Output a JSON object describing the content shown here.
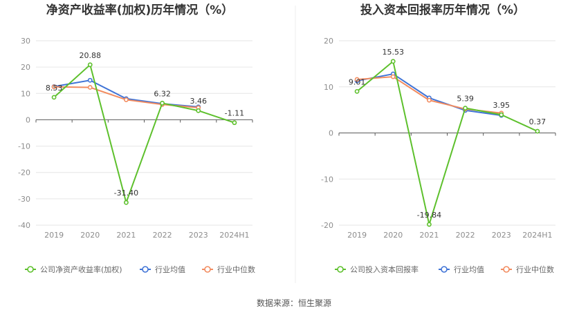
{
  "footer": "数据来源：恒生聚源",
  "chart_data": [
    {
      "type": "line",
      "title": "净资产收益率(加权)历年情况（%）",
      "categories": [
        "2019",
        "2020",
        "2021",
        "2022",
        "2023",
        "2024H1"
      ],
      "ylim": [
        -40,
        30
      ],
      "yticks": [
        30,
        20,
        10,
        0,
        -10,
        -20,
        -30,
        -40
      ],
      "grid": true,
      "legend_position": "bottom",
      "series": [
        {
          "name": "公司净资产收益率(加权)",
          "color": "#5dc02c",
          "values": [
            8.53,
            20.88,
            -31.4,
            6.32,
            3.46,
            -1.11
          ],
          "labels": [
            "8.53",
            "20.88",
            "-31.40",
            "6.32",
            "3.46",
            "-1.11"
          ]
        },
        {
          "name": "行业均值",
          "color": "#3f73d6",
          "values": [
            12.6,
            15.0,
            8.0,
            6.1,
            4.9,
            null
          ]
        },
        {
          "name": "行业中位数",
          "color": "#f28b5f",
          "values": [
            12.5,
            12.3,
            7.6,
            5.8,
            4.6,
            null
          ]
        }
      ]
    },
    {
      "type": "line",
      "title": "投入资本回报率历年情况（%）",
      "categories": [
        "2019",
        "2020",
        "2021",
        "2022",
        "2023",
        "2024H1"
      ],
      "ylim": [
        -20,
        20
      ],
      "yticks": [
        20,
        10,
        0,
        -10,
        -20
      ],
      "grid": true,
      "legend_position": "bottom",
      "series": [
        {
          "name": "公司投入资本回报率",
          "color": "#5dc02c",
          "values": [
            9.01,
            15.53,
            -19.84,
            5.39,
            3.95,
            0.37
          ],
          "labels": [
            "9.01",
            "15.53",
            "-19.84",
            "5.39",
            "3.95",
            "0.37"
          ]
        },
        {
          "name": "行业均值",
          "color": "#3f73d6",
          "values": [
            11.3,
            12.8,
            7.6,
            4.9,
            3.8,
            null
          ]
        },
        {
          "name": "行业中位数",
          "color": "#f28b5f",
          "values": [
            11.6,
            12.2,
            7.1,
            5.2,
            4.3,
            null
          ]
        }
      ]
    }
  ]
}
